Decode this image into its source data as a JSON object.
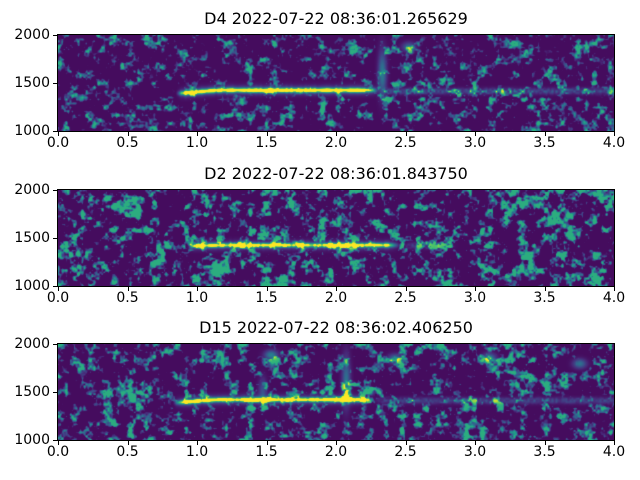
{
  "figure": {
    "background": "#ffffff",
    "text_color": "#000000",
    "spine_color": "#000000",
    "colors": {
      "colormap_low": "#440154",
      "colormap_mid": "#26828e",
      "colormap_high": "#fde725"
    }
  },
  "chart_data": [
    {
      "type": "heatmap",
      "subtype": "spectrogram",
      "title": "D4 2022-07-22 08:36:01.265629",
      "colormap": "viridis",
      "xlim": [
        0.0,
        4.0
      ],
      "ylim": [
        1000,
        2000
      ],
      "x_tick_labels": [
        "0.0",
        "0.5",
        "1.0",
        "1.5",
        "2.0",
        "2.5",
        "3.0",
        "3.5",
        "4.0"
      ],
      "y_tick_labels": [
        "2000",
        "1500",
        "1000"
      ],
      "noise": {
        "seed": 101,
        "gain": 0.95,
        "threshold": 0.53
      },
      "tone": {
        "freq_hz": 1430,
        "onset_freq_hz": 1398,
        "start_s": 0.84,
        "end_s": 2.3,
        "level": 1.0
      },
      "tail_band": {
        "freq_hz": 1420,
        "start_s": 2.3,
        "end_s": 4.0,
        "level": 0.34
      },
      "bursts": [
        {
          "time_s": 2.33,
          "top_freq_hz": 1780,
          "level": 0.6
        }
      ],
      "hotspots": [
        {
          "time_s": 2.52,
          "freq_hz": 1880,
          "level": 0.5
        }
      ]
    },
    {
      "type": "heatmap",
      "subtype": "spectrogram",
      "title": "D2 2022-07-22 08:36:01.843750",
      "colormap": "viridis",
      "xlim": [
        0.0,
        4.0
      ],
      "ylim": [
        1000,
        2000
      ],
      "x_tick_labels": [
        "0.0",
        "0.5",
        "1.0",
        "1.5",
        "2.0",
        "2.5",
        "3.0",
        "3.5",
        "4.0"
      ],
      "y_tick_labels": [
        "2000",
        "1500",
        "1000"
      ],
      "noise": {
        "seed": 202,
        "gain": 1.3,
        "threshold": 0.5
      },
      "tone": {
        "freq_hz": 1430,
        "onset_freq_hz": 1425,
        "start_s": 0.92,
        "end_s": 2.45,
        "level": 0.8
      },
      "tail_band": {
        "freq_hz": 1425,
        "start_s": 2.45,
        "end_s": 2.9,
        "level": 0.25
      },
      "bursts": [],
      "hotspots": []
    },
    {
      "type": "heatmap",
      "subtype": "spectrogram",
      "title": "D15 2022-07-22 08:36:02.406250",
      "colormap": "viridis",
      "xlim": [
        0.0,
        4.0
      ],
      "ylim": [
        1000,
        2000
      ],
      "x_tick_labels": [
        "0.0",
        "0.5",
        "1.0",
        "1.5",
        "2.0",
        "2.5",
        "3.0",
        "3.5",
        "4.0"
      ],
      "y_tick_labels": [
        "2000",
        "1500",
        "1000"
      ],
      "noise": {
        "seed": 303,
        "gain": 1.05,
        "threshold": 0.52
      },
      "tone": {
        "freq_hz": 1425,
        "onset_freq_hz": 1395,
        "start_s": 0.82,
        "end_s": 2.25,
        "level": 0.95
      },
      "tail_band": {
        "freq_hz": 1415,
        "start_s": 2.25,
        "end_s": 4.0,
        "level": 0.3
      },
      "bursts": [
        {
          "time_s": 1.47,
          "top_freq_hz": 1620,
          "level": 0.35
        },
        {
          "time_s": 2.07,
          "top_freq_hz": 1810,
          "level": 0.55
        }
      ],
      "hotspots": [
        {
          "time_s": 1.53,
          "freq_hz": 1890,
          "level": 0.65
        },
        {
          "time_s": 2.42,
          "freq_hz": 1850,
          "level": 0.6
        },
        {
          "time_s": 3.1,
          "freq_hz": 1860,
          "level": 0.6
        },
        {
          "time_s": 3.75,
          "freq_hz": 1800,
          "level": 0.55
        }
      ]
    }
  ]
}
